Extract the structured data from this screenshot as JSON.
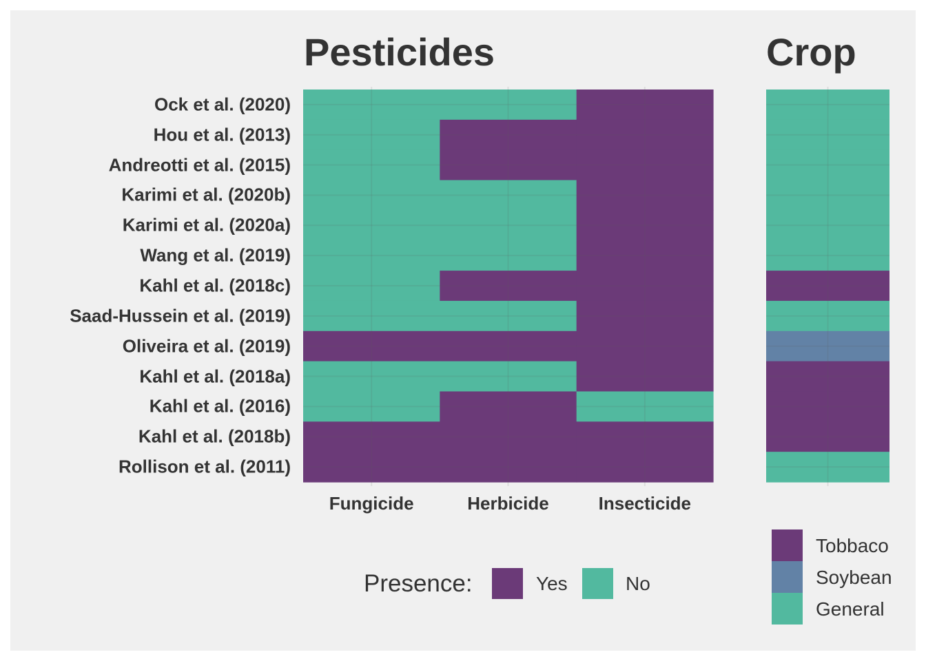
{
  "chart_data": [
    {
      "type": "heatmap",
      "title": "Pesticides",
      "rows": [
        "Ock et al. (2020)",
        "Hou et al. (2013)",
        "Andreotti et al. (2015)",
        "Karimi et al. (2020b)",
        "Karimi et al. (2020a)",
        "Wang et al. (2019)",
        "Kahl et al. (2018c)",
        "Saad-Hussein et al. (2019)",
        "Oliveira et al. (2019)",
        "Kahl et al. (2018a)",
        "Kahl et al. (2016)",
        "Kahl et al. (2018b)",
        "Rollison et al. (2011)"
      ],
      "columns": [
        "Fungicide",
        "Herbicide",
        "Insecticide"
      ],
      "values": [
        [
          "No",
          "No",
          "Yes"
        ],
        [
          "No",
          "Yes",
          "Yes"
        ],
        [
          "No",
          "Yes",
          "Yes"
        ],
        [
          "No",
          "No",
          "Yes"
        ],
        [
          "No",
          "No",
          "Yes"
        ],
        [
          "No",
          "No",
          "Yes"
        ],
        [
          "No",
          "Yes",
          "Yes"
        ],
        [
          "No",
          "No",
          "Yes"
        ],
        [
          "Yes",
          "Yes",
          "Yes"
        ],
        [
          "No",
          "No",
          "Yes"
        ],
        [
          "No",
          "Yes",
          "No"
        ],
        [
          "Yes",
          "Yes",
          "Yes"
        ],
        [
          "Yes",
          "Yes",
          "Yes"
        ]
      ],
      "legend": {
        "title": "Presence:",
        "placement": "bottom",
        "entries": [
          {
            "label": "Yes",
            "color": "#6b3a78"
          },
          {
            "label": "No",
            "color": "#52b99f"
          }
        ]
      },
      "grid": true
    },
    {
      "type": "heatmap",
      "title": "Crop",
      "rows": [
        "Ock et al. (2020)",
        "Hou et al. (2013)",
        "Andreotti et al. (2015)",
        "Karimi et al. (2020b)",
        "Karimi et al. (2020a)",
        "Wang et al. (2019)",
        "Kahl et al. (2018c)",
        "Saad-Hussein et al. (2019)",
        "Oliveira et al. (2019)",
        "Kahl et al. (2018a)",
        "Kahl et al. (2016)",
        "Kahl et al. (2018b)",
        "Rollison et al. (2011)"
      ],
      "values": [
        "General",
        "General",
        "General",
        "General",
        "General",
        "General",
        "Tobbaco",
        "General",
        "Soybean",
        "Tobbaco",
        "Tobbaco",
        "Tobbaco",
        "General"
      ],
      "legend": {
        "placement": "bottom-right",
        "entries": [
          {
            "label": "Tobbaco",
            "color": "#6b3a78"
          },
          {
            "label": "Soybean",
            "color": "#6282a6"
          },
          {
            "label": "General",
            "color": "#52b99f"
          }
        ]
      },
      "grid": true
    }
  ]
}
